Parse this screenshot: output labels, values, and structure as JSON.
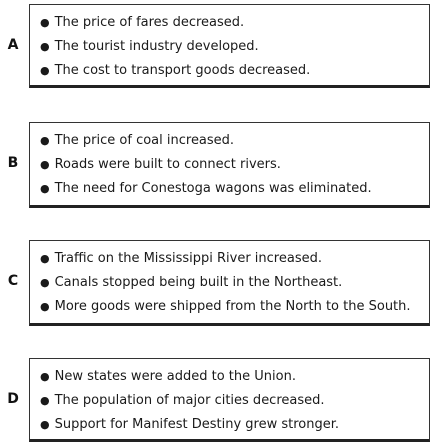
{
  "options": [
    {
      "letter": "A",
      "bullets": [
        "The price of fares decreased.",
        "The tourist industry developed.",
        "The cost to transport goods decreased."
      ]
    },
    {
      "letter": "B",
      "bullets": [
        "The price of coal increased.",
        "Roads were built to connect rivers.",
        "The need for Conestoga wagons was eliminated."
      ]
    },
    {
      "letter": "C",
      "bullets": [
        "Traffic on the Mississippi River increased.",
        "Canals stopped being built in the Northeast.",
        "More goods were shipped from the North to the South."
      ]
    },
    {
      "letter": "D",
      "bullets": [
        "New states were added to the Union.",
        "The population of major cities decreased.",
        "Support for Manifest Destiny grew stronger."
      ]
    }
  ]
}
